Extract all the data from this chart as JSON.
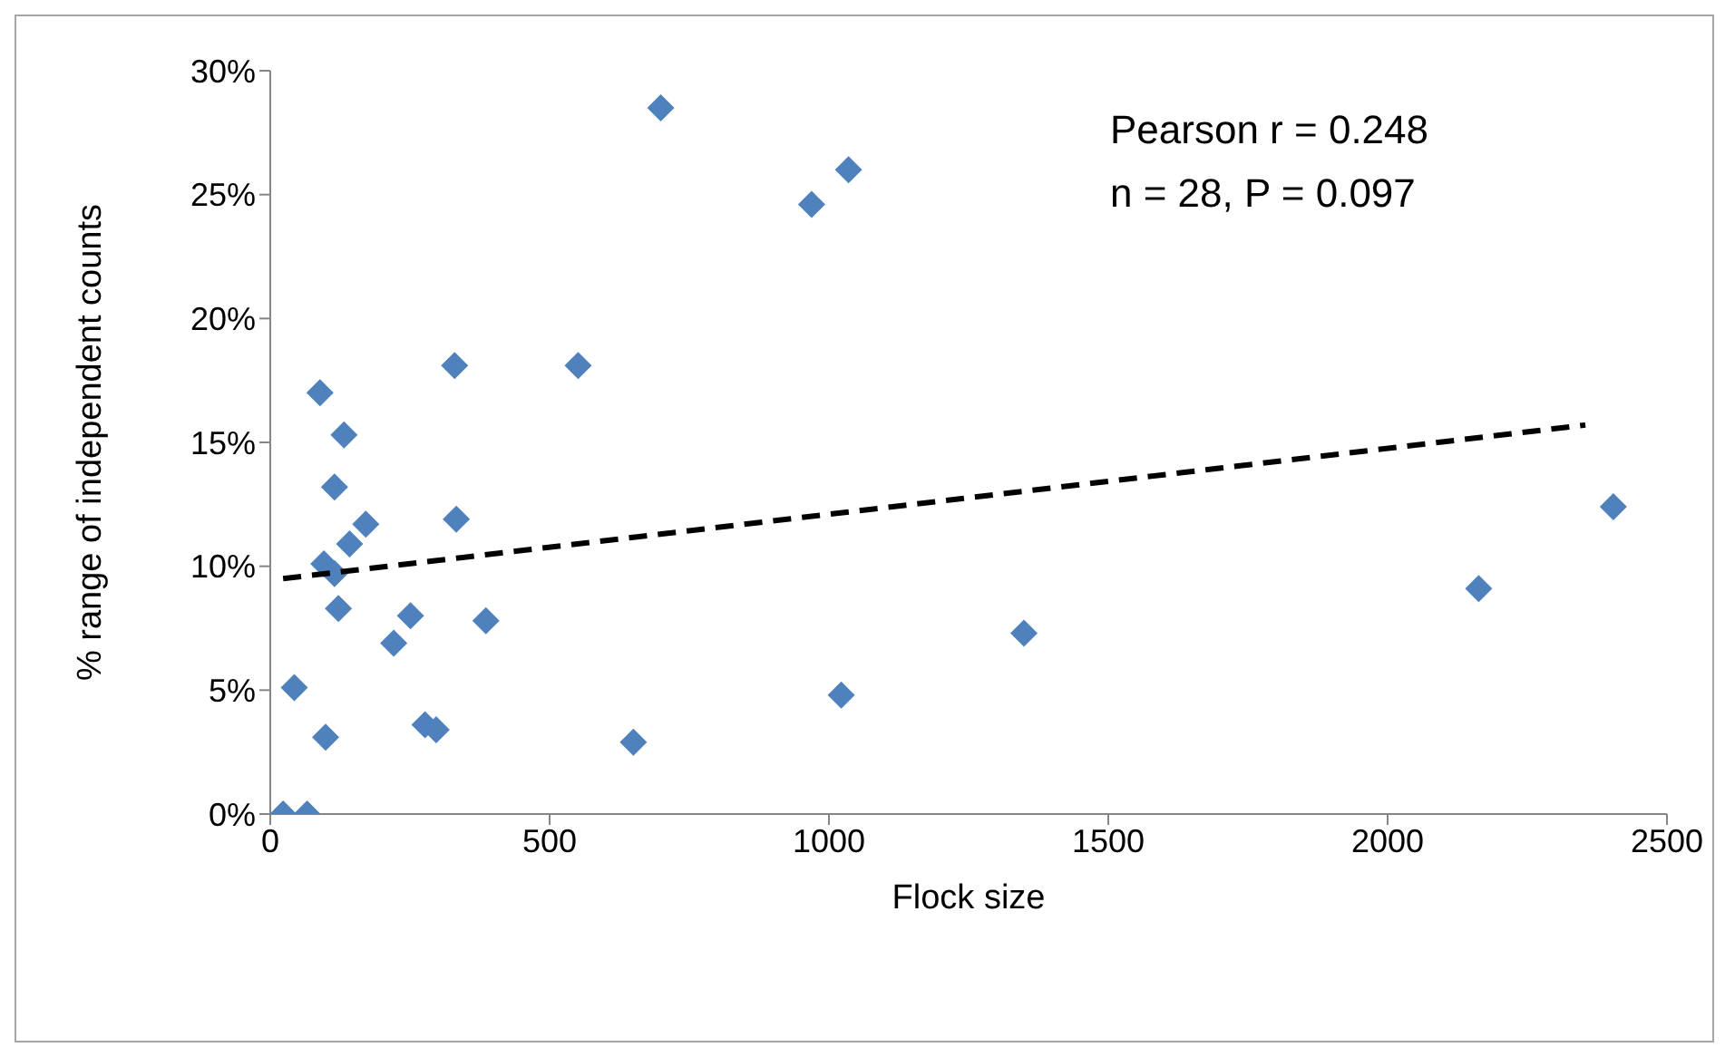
{
  "chart_data": {
    "type": "scatter",
    "xlabel": "Flock size",
    "ylabel": "% range of independent  counts",
    "annotations": [
      "Pearson r = 0.248",
      "n = 28,  P = 0.097"
    ],
    "series": [
      {
        "type": "scatter",
        "color": "#4f81bd",
        "marker": "diamond",
        "x": [
          23,
          66,
          43,
          99,
          89,
          132,
          115,
          171,
          142,
          115,
          96,
          122,
          221,
          251,
          277,
          297,
          333,
          330,
          386,
          551,
          650,
          699,
          969,
          1035,
          1022,
          1349,
          2163,
          2404
        ],
        "values": [
          0,
          0,
          5.1,
          3.1,
          17.0,
          15.3,
          13.2,
          11.7,
          10.9,
          9.7,
          10.1,
          8.3,
          6.9,
          8.0,
          3.6,
          3.4,
          11.9,
          18.1,
          7.8,
          18.1,
          2.9,
          28.5,
          24.6,
          26.0,
          4.8,
          7.3,
          9.1,
          12.4
        ]
      },
      {
        "type": "line",
        "color": "#000000",
        "line_style": "dashed",
        "marker": "none",
        "x": [
          23,
          2354
        ],
        "values": [
          9.5,
          15.7
        ]
      }
    ],
    "xlim": [
      0,
      2500
    ],
    "xticks": [
      0,
      500,
      1000,
      1500,
      2000,
      2500
    ],
    "ylim": [
      0,
      30
    ],
    "yticks": [
      {
        "value": 0,
        "label": "0%"
      },
      {
        "value": 5,
        "label": "5%"
      },
      {
        "value": 10,
        "label": "10%"
      },
      {
        "value": 15,
        "label": "15%"
      },
      {
        "value": 20,
        "label": "20%"
      },
      {
        "value": 25,
        "label": "25%"
      },
      {
        "value": 30,
        "label": "30%"
      }
    ],
    "grid": false,
    "legend": false
  }
}
